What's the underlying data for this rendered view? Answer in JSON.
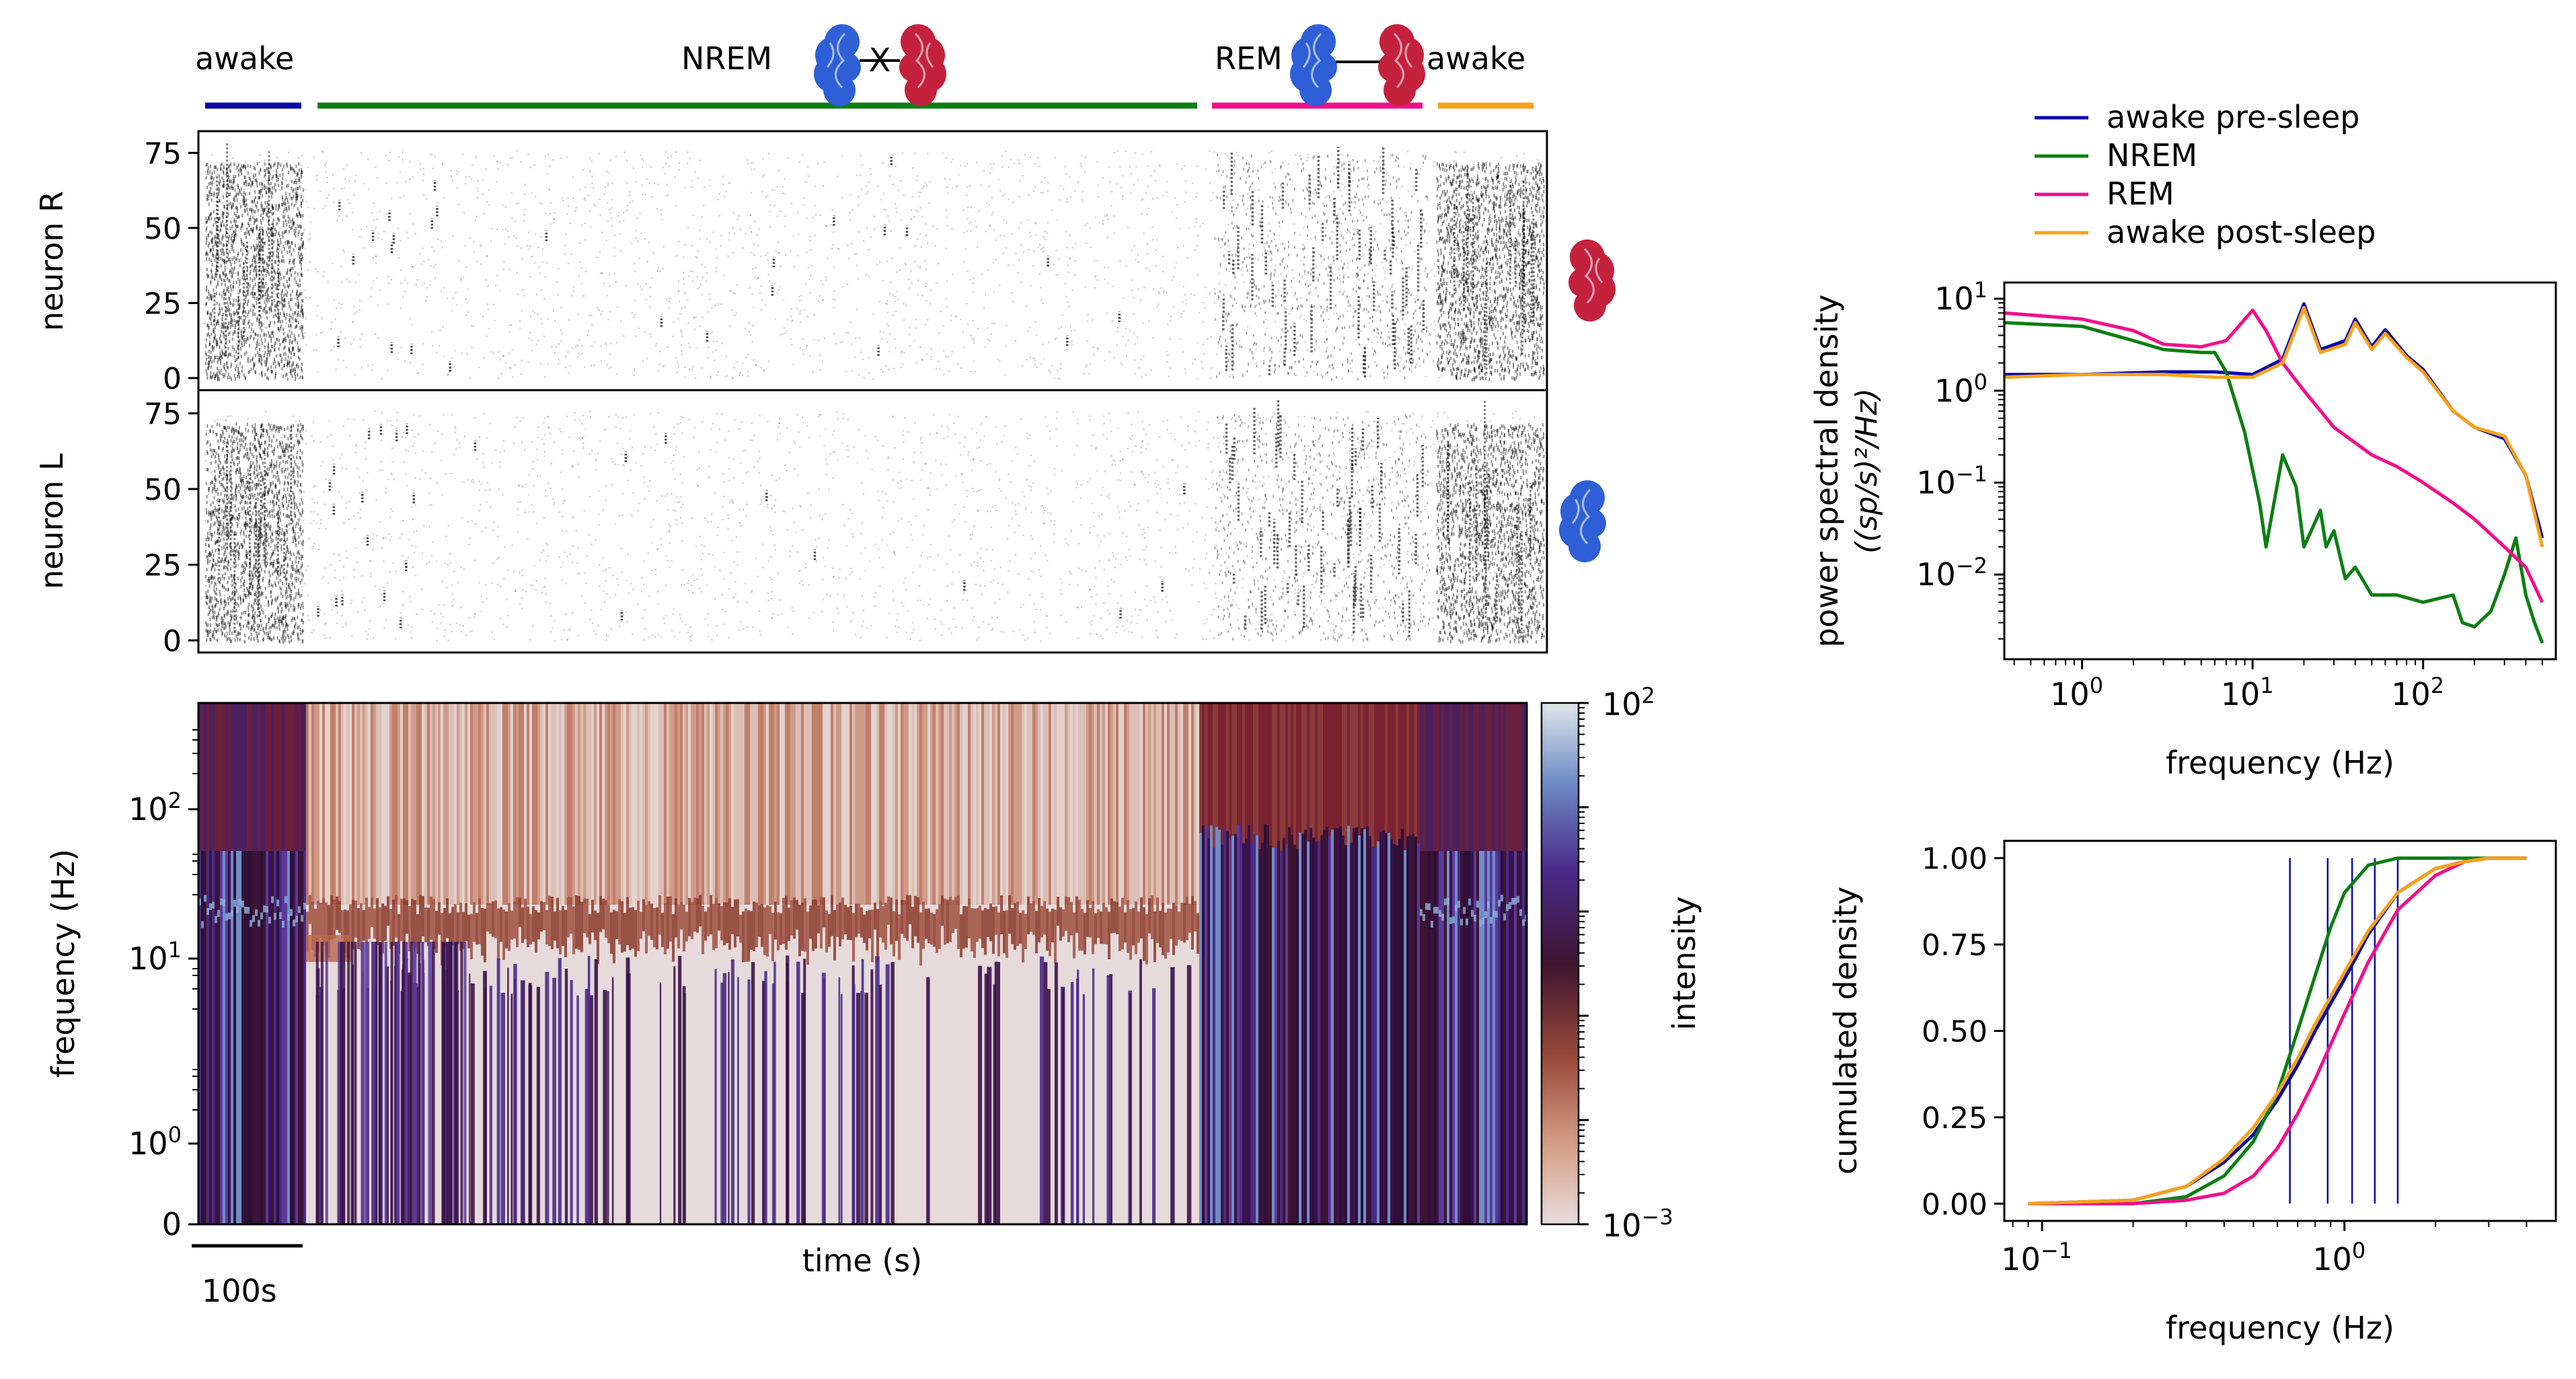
{
  "stages": {
    "items": [
      {
        "label": "awake",
        "color": "#0a0aa8"
      },
      {
        "label": "NREM",
        "color": "#0b7f12"
      },
      {
        "label": "REM",
        "color": "#f0108a"
      },
      {
        "label": "awake",
        "color": "#f5a21b"
      }
    ],
    "brain_colors": {
      "left": "#2f5fd6",
      "right": "#c4213d"
    },
    "nrem_link_symbol": "X"
  },
  "raster": {
    "top_ylabel": "neuron R",
    "bottom_ylabel": "neuron L",
    "yticks": [
      "0",
      "25",
      "50",
      "75"
    ],
    "ylim": [
      0,
      80
    ],
    "point_color": "#000000"
  },
  "spectrogram": {
    "ylabel": "frequency (Hz)",
    "xlabel": "time (s)",
    "scalebar_label": "100s",
    "yticks": [
      {
        "base": "0",
        "exp": "",
        "plain": true
      },
      {
        "base": "10",
        "exp": "0",
        "plain": false
      },
      {
        "base": "10",
        "exp": "1",
        "plain": false
      },
      {
        "base": "10",
        "exp": "2",
        "plain": false
      }
    ],
    "colorbar": {
      "label": "intensity",
      "min_label": {
        "base": "10",
        "exp": "−3"
      },
      "max_label": {
        "base": "10",
        "exp": "2"
      }
    }
  },
  "chart_data": [
    {
      "type": "line",
      "title": "",
      "xlabel": "frequency (Hz)",
      "ylabel_line1": "power spectral density",
      "ylabel_line2": "((sp/s)²/Hz)",
      "xscale": "log",
      "yscale": "log",
      "xlim": [
        0.35,
        600
      ],
      "ylim": [
        0.0012,
        15
      ],
      "xticks": [
        {
          "base": "10",
          "exp": "0"
        },
        {
          "base": "10",
          "exp": "1"
        },
        {
          "base": "10",
          "exp": "2"
        }
      ],
      "yticks": [
        {
          "base": "10",
          "exp": "−2"
        },
        {
          "base": "10",
          "exp": "−1"
        },
        {
          "base": "10",
          "exp": "0"
        },
        {
          "base": "10",
          "exp": "1"
        }
      ],
      "legend_position": "top",
      "series": [
        {
          "name": "awake pre-sleep",
          "color": "#0a0aa8",
          "x": [
            0.35,
            1,
            3,
            6,
            10,
            15,
            20,
            25,
            35,
            40,
            50,
            60,
            80,
            100,
            150,
            200,
            300,
            400,
            500
          ],
          "y": [
            1.5,
            1.5,
            1.6,
            1.6,
            1.5,
            2.2,
            8.8,
            2.8,
            3.5,
            6.0,
            3.0,
            4.6,
            2.4,
            1.7,
            0.6,
            0.4,
            0.3,
            0.12,
            0.025
          ]
        },
        {
          "name": "NREM",
          "color": "#0b7f12",
          "x": [
            0.35,
            1,
            2,
            3,
            5,
            6,
            7,
            9,
            11,
            12,
            15,
            18,
            20,
            25,
            27,
            30,
            35,
            40,
            50,
            70,
            100,
            150,
            170,
            200,
            250,
            300,
            350,
            400,
            450,
            500
          ],
          "y": [
            5.5,
            5.0,
            3.5,
            2.8,
            2.6,
            2.6,
            1.6,
            0.35,
            0.06,
            0.02,
            0.2,
            0.09,
            0.02,
            0.05,
            0.02,
            0.03,
            0.009,
            0.012,
            0.006,
            0.006,
            0.005,
            0.006,
            0.003,
            0.0027,
            0.004,
            0.01,
            0.025,
            0.006,
            0.003,
            0.0018
          ]
        },
        {
          "name": "REM",
          "color": "#f0108a",
          "x": [
            0.35,
            1,
            2,
            3,
            5,
            7,
            10,
            12,
            15,
            20,
            30,
            50,
            70,
            100,
            150,
            200,
            300,
            400,
            500
          ],
          "y": [
            7.0,
            6.0,
            4.5,
            3.2,
            3.0,
            3.5,
            7.5,
            4.5,
            2.0,
            1.0,
            0.4,
            0.2,
            0.15,
            0.1,
            0.06,
            0.04,
            0.02,
            0.012,
            0.005
          ]
        },
        {
          "name": "awake post-sleep",
          "color": "#f5a21b",
          "x": [
            0.35,
            1,
            3,
            6,
            10,
            15,
            20,
            25,
            35,
            40,
            50,
            60,
            80,
            100,
            150,
            200,
            300,
            400,
            500
          ],
          "y": [
            1.4,
            1.5,
            1.5,
            1.4,
            1.4,
            2.0,
            8.0,
            2.6,
            3.2,
            5.5,
            2.8,
            4.2,
            2.3,
            1.6,
            0.6,
            0.4,
            0.32,
            0.12,
            0.02
          ]
        }
      ]
    },
    {
      "type": "line",
      "title": "",
      "xlabel": "frequency (Hz)",
      "ylabel": "cumulated density",
      "xscale": "log",
      "yscale": "linear",
      "xlim": [
        0.075,
        5
      ],
      "ylim": [
        -0.05,
        1.05
      ],
      "xticks": [
        {
          "base": "10",
          "exp": "−1"
        },
        {
          "base": "10",
          "exp": "0"
        }
      ],
      "yticks": [
        "0.00",
        "0.25",
        "0.50",
        "0.75",
        "1.00"
      ],
      "vlines": [
        0.66,
        0.88,
        1.06,
        1.26,
        1.5
      ],
      "vline_color": "#0a0aa8",
      "series": [
        {
          "name": "awake pre-sleep",
          "color": "#0a0aa8",
          "x": [
            0.09,
            0.2,
            0.3,
            0.4,
            0.5,
            0.6,
            0.7,
            0.8,
            1.0,
            1.2,
            1.5,
            2.0,
            2.5,
            3.0,
            4.0
          ],
          "y": [
            0.0,
            0.01,
            0.05,
            0.12,
            0.2,
            0.3,
            0.4,
            0.5,
            0.65,
            0.78,
            0.9,
            0.97,
            0.99,
            1.0,
            1.0
          ]
        },
        {
          "name": "NREM",
          "color": "#0b7f12",
          "x": [
            0.09,
            0.2,
            0.3,
            0.4,
            0.5,
            0.6,
            0.7,
            0.8,
            0.9,
            1.0,
            1.2,
            1.5,
            2.0,
            3.0,
            4.0
          ],
          "y": [
            0.0,
            0.0,
            0.02,
            0.08,
            0.18,
            0.32,
            0.5,
            0.66,
            0.8,
            0.9,
            0.98,
            1.0,
            1.0,
            1.0,
            1.0
          ]
        },
        {
          "name": "REM",
          "color": "#f0108a",
          "x": [
            0.09,
            0.2,
            0.3,
            0.4,
            0.5,
            0.6,
            0.7,
            0.8,
            1.0,
            1.2,
            1.5,
            2.0,
            2.5,
            3.0,
            4.0
          ],
          "y": [
            0.0,
            0.0,
            0.01,
            0.03,
            0.08,
            0.16,
            0.26,
            0.36,
            0.55,
            0.7,
            0.85,
            0.95,
            0.99,
            1.0,
            1.0
          ]
        },
        {
          "name": "awake post-sleep",
          "color": "#f5a21b",
          "x": [
            0.09,
            0.2,
            0.3,
            0.4,
            0.5,
            0.6,
            0.7,
            0.8,
            1.0,
            1.2,
            1.5,
            2.0,
            2.5,
            3.0,
            4.0
          ],
          "y": [
            0.0,
            0.01,
            0.05,
            0.13,
            0.22,
            0.32,
            0.42,
            0.52,
            0.67,
            0.79,
            0.9,
            0.97,
            0.99,
            1.0,
            1.0
          ]
        }
      ]
    }
  ]
}
